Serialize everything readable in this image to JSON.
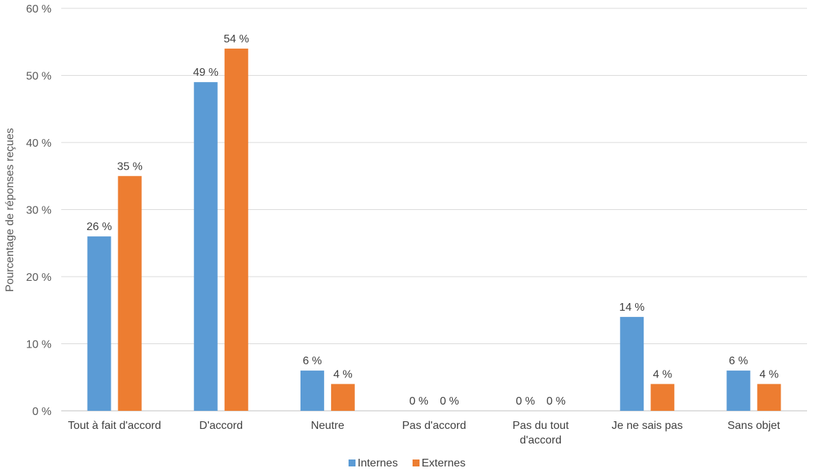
{
  "chart_data": {
    "type": "bar",
    "ylabel": "Pourcentage de réponses reçues",
    "ylim": [
      0,
      60
    ],
    "yticks": [
      0,
      10,
      20,
      30,
      40,
      50,
      60
    ],
    "tick_suffix": " %",
    "categories": [
      [
        "Tout à fait d'accord"
      ],
      [
        "D'accord"
      ],
      [
        "Neutre"
      ],
      [
        "Pas d'accord"
      ],
      [
        "Pas du tout",
        "d'accord"
      ],
      [
        "Je ne sais pas"
      ],
      [
        "Sans objet"
      ]
    ],
    "series": [
      {
        "name": "Internes",
        "color": "#5B9BD5",
        "values": [
          26,
          49,
          6,
          0,
          0,
          14,
          6
        ],
        "labels": [
          "26 %",
          "49 %",
          "6 %",
          "0 %",
          "0 %",
          "14 %",
          "6 %"
        ]
      },
      {
        "name": "Externes",
        "color": "#ED7D31",
        "values": [
          35,
          54,
          4,
          0,
          0,
          4,
          4
        ],
        "labels": [
          "35 %",
          "54 %",
          "4 %",
          "0 %",
          "0 %",
          "4 %",
          "4 %"
        ]
      }
    ],
    "grid": true,
    "legend": "bottom"
  }
}
